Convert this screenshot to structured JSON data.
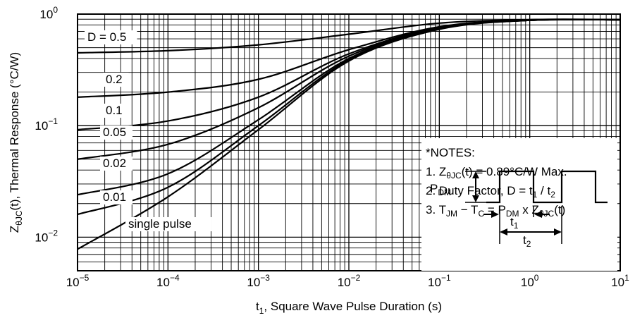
{
  "chart_data": {
    "type": "line",
    "xscale": "log",
    "yscale": "log",
    "xlim": [
      1e-05,
      10
    ],
    "ylim": [
      0.005,
      1
    ],
    "grid": true,
    "xlabel": {
      "pre": "t",
      "sub": "1",
      "post": ", Square Wave Pulse Duration (s)"
    },
    "ylabel": {
      "pre": "Z",
      "sub": "θJC",
      "post": "(t), Thermal Response (°C/W)"
    },
    "x_ticks": [
      {
        "base": "10",
        "exp": "−5"
      },
      {
        "base": "10",
        "exp": "−4"
      },
      {
        "base": "10",
        "exp": "−3"
      },
      {
        "base": "10",
        "exp": "−2"
      },
      {
        "base": "10",
        "exp": "−1"
      },
      {
        "base": "10",
        "exp": "0"
      },
      {
        "base": "10",
        "exp": "1"
      }
    ],
    "y_ticks": [
      {
        "base": "10",
        "exp": "−2",
        "value": 0.01
      },
      {
        "base": "10",
        "exp": "−1",
        "value": 0.1
      },
      {
        "base": "10",
        "exp": "0",
        "value": 1
      }
    ],
    "x": [
      1e-05,
      0.0001,
      0.001,
      0.01,
      0.1,
      1,
      10
    ],
    "series": [
      {
        "name": "D = 0.5",
        "values": [
          0.45,
          0.47,
          0.53,
          0.66,
          0.83,
          0.89,
          0.89
        ]
      },
      {
        "name": "0.2",
        "values": [
          0.18,
          0.2,
          0.26,
          0.48,
          0.77,
          0.89,
          0.89
        ]
      },
      {
        "name": "0.1",
        "values": [
          0.092,
          0.11,
          0.18,
          0.44,
          0.76,
          0.88,
          0.89
        ]
      },
      {
        "name": "0.05",
        "values": [
          0.05,
          0.068,
          0.145,
          0.42,
          0.75,
          0.88,
          0.89
        ]
      },
      {
        "name": "0.02",
        "values": [
          0.024,
          0.037,
          0.113,
          0.4,
          0.74,
          0.88,
          0.89
        ]
      },
      {
        "name": "0.01",
        "values": [
          0.016,
          0.028,
          0.1,
          0.39,
          0.74,
          0.88,
          0.89
        ]
      },
      {
        "name": "single pulse",
        "values": [
          0.0078,
          0.023,
          0.092,
          0.38,
          0.73,
          0.88,
          0.89
        ]
      }
    ],
    "notes": {
      "title": "*NOTES:",
      "line1": {
        "a": "1. Z",
        "sub": "θJC",
        "b": "(t) = 0.89°C/W Max."
      },
      "line2": {
        "a": "2. Duty Factor, D = t",
        "s1": "1",
        "b": " / t",
        "s2": "2"
      },
      "line3": {
        "a": "3. T",
        "s1": "JM",
        "b": " − T",
        "s2": "C",
        "c": " = P",
        "s3": "DM",
        "d": " x Z",
        "s4": "θJC",
        "e": "(t)"
      },
      "pdm": {
        "a": "P",
        "sub": "DM"
      },
      "t1": {
        "a": "t",
        "sub": "1"
      },
      "t2": {
        "a": "t",
        "sub": "2"
      }
    }
  }
}
